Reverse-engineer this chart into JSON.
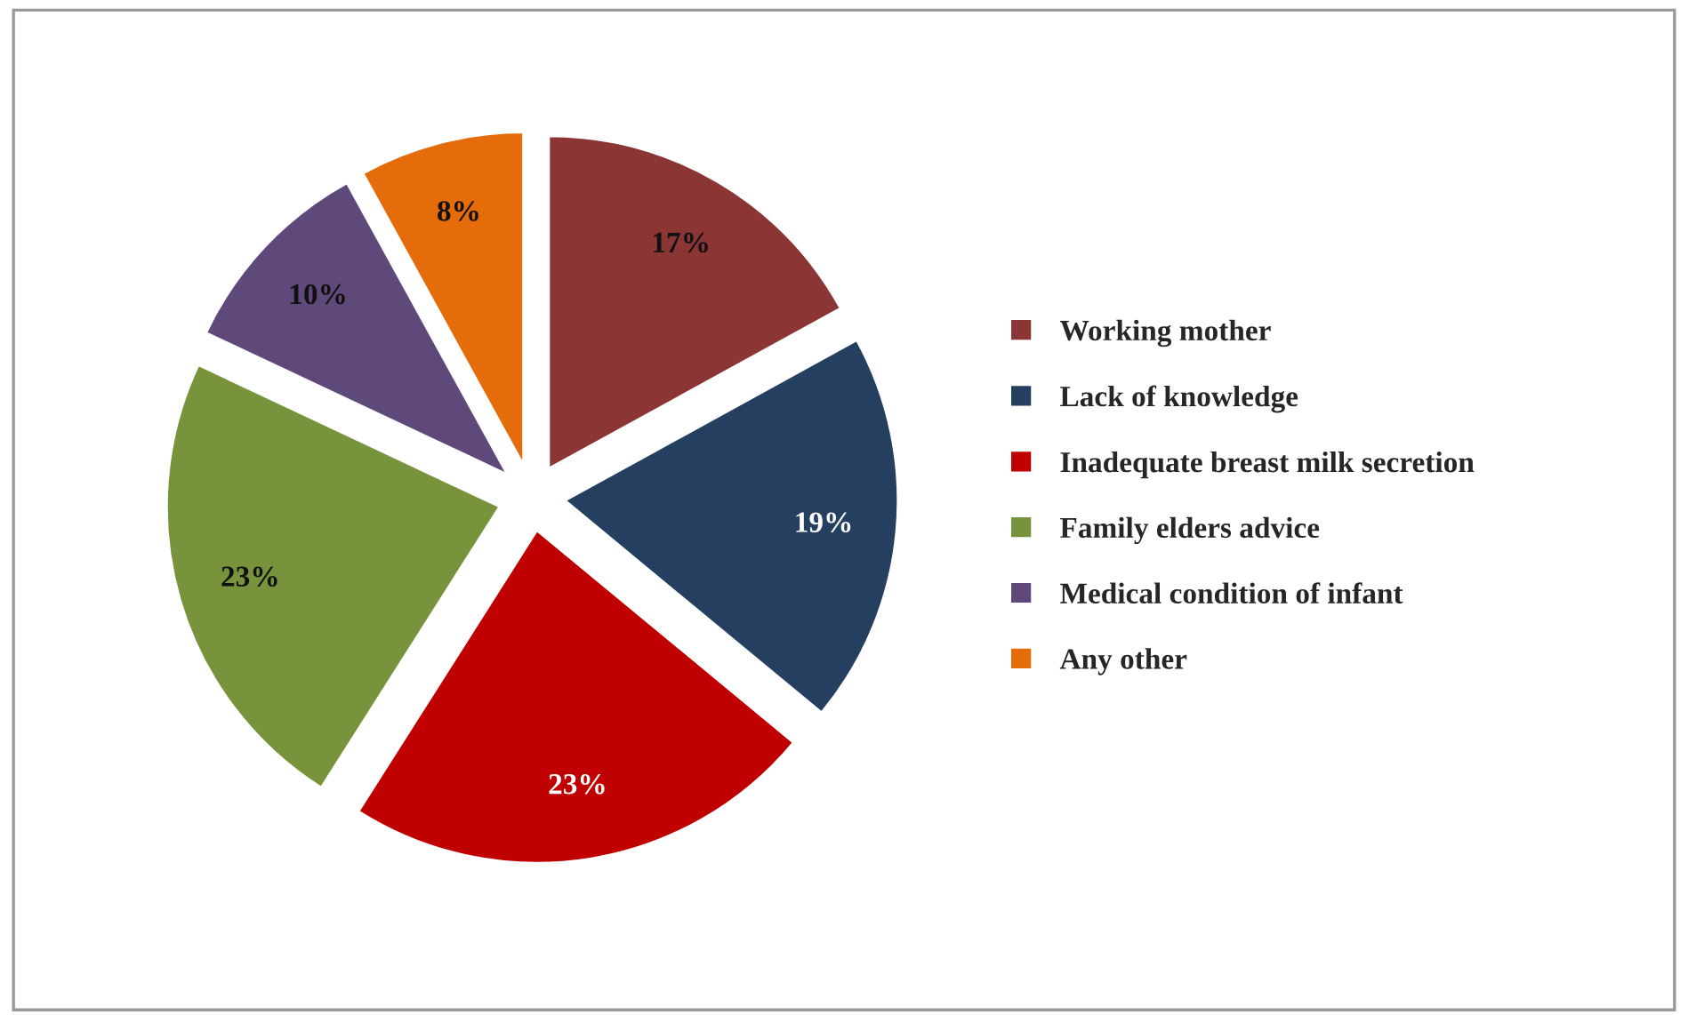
{
  "chart_data": {
    "type": "pie",
    "categories": [
      "Working mother",
      "Lack of knowledge",
      "Inadequate breast milk secretion",
      "Family elders advice",
      "Medical condition of infant",
      "Any other"
    ],
    "values": [
      17,
      19,
      23,
      23,
      10,
      8
    ],
    "colors": [
      "#8b3535",
      "#243f60",
      "#c00000",
      "#77933c",
      "#5f497a",
      "#e46c0a"
    ],
    "value_labels": [
      "17%",
      "19%",
      "23%",
      "23%",
      "10%",
      "8%"
    ],
    "legend": "right"
  }
}
